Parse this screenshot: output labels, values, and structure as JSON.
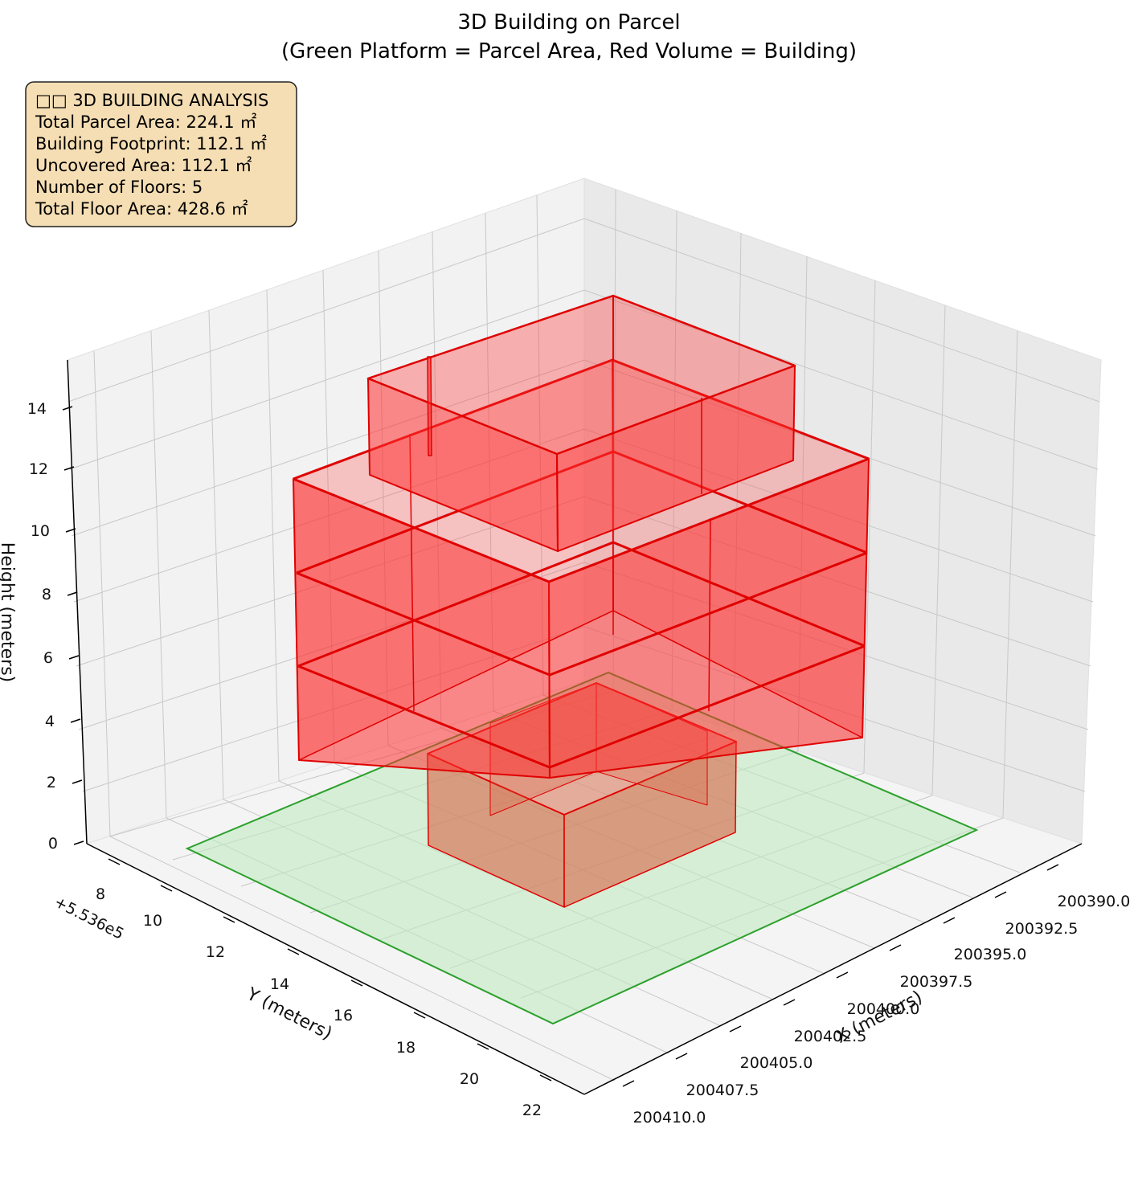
{
  "chart_data": {
    "type": "3d-box",
    "title": "3D Building on Parcel",
    "subtitle": "(Green Platform = Parcel Area, Red Volume = Building)",
    "xlabel": "X (meters)",
    "ylabel": "Y (meters)",
    "zlabel": "Height (meters)",
    "y_offset_label": "+5.536e5",
    "x_ticks": [
      "200390.0",
      "200392.5",
      "200395.0",
      "200397.5",
      "200400.0",
      "200402.5",
      "200405.0",
      "200407.5",
      "200410.0"
    ],
    "y_ticks": [
      "8",
      "10",
      "12",
      "14",
      "16",
      "18",
      "20",
      "22"
    ],
    "z_ticks": [
      "0",
      "2",
      "4",
      "6",
      "8",
      "10",
      "12",
      "14"
    ],
    "zlim": [
      0,
      15
    ],
    "grid": true,
    "colors": {
      "parcel": "#2ca02c",
      "parcel_fill": "#bfeabf",
      "building": "#e00000",
      "building_fill": "#ff3030"
    },
    "info_box": {
      "lines": [
        "□□ 3D BUILDING ANALYSIS",
        "Total Parcel Area: 224.1 ㎡",
        "Building Footprint: 112.1 ㎡",
        "Uncovered Area: 112.1 ㎡",
        "Number of Floors: 5",
        "Total Floor Area: 428.6 ㎡"
      ],
      "background": "#f5deb3"
    }
  }
}
